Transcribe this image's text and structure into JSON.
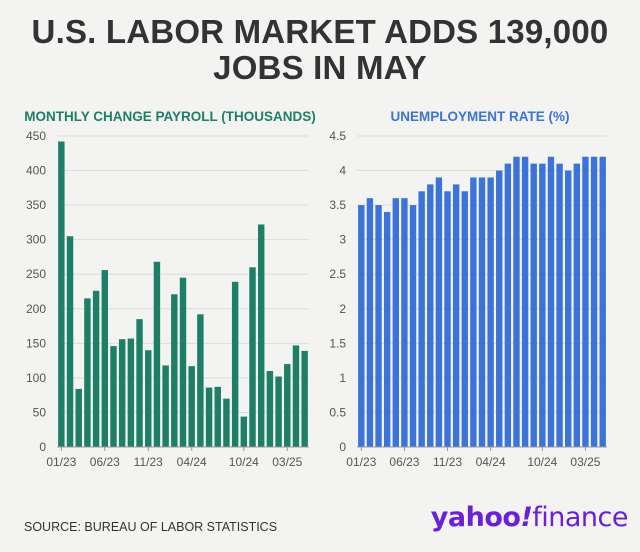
{
  "headline": {
    "line1": "U.S. LABOR MARKET ADDS 139,000",
    "line2": "JOBS IN MAY"
  },
  "source": "SOURCE: BUREAU OF LABOR STATISTICS",
  "logo": {
    "part1": "yahoo",
    "slash": "!",
    "part2": "finance"
  },
  "colors": {
    "payroll": "#1f7f66",
    "unemployment": "#3b73d9",
    "payroll_title": "#1f7f66",
    "unemployment_title": "#3b73d9"
  },
  "chart_data": [
    {
      "type": "bar",
      "title": "MONTHLY CHANGE PAYROLL (THOUSANDS)",
      "xlabel": "",
      "ylabel": "",
      "ylim": [
        0,
        450
      ],
      "yticks": [
        0,
        50,
        100,
        150,
        200,
        250,
        300,
        350,
        400,
        450
      ],
      "xtick_labels": [
        "01/23",
        "06/23",
        "11/23",
        "04/24",
        "10/24",
        "03/25"
      ],
      "xtick_indices": [
        0,
        5,
        10,
        15,
        21,
        26
      ],
      "categories": [
        "01/23",
        "02/23",
        "03/23",
        "04/23",
        "05/23",
        "06/23",
        "07/23",
        "08/23",
        "09/23",
        "10/23",
        "11/23",
        "12/23",
        "01/24",
        "02/24",
        "03/24",
        "04/24",
        "05/24",
        "06/24",
        "07/24",
        "08/24",
        "09/24",
        "10/24",
        "11/24",
        "12/24",
        "01/25",
        "02/25",
        "03/25",
        "04/25",
        "05/25"
      ],
      "values": [
        442,
        305,
        84,
        215,
        226,
        256,
        146,
        156,
        157,
        185,
        140,
        268,
        118,
        221,
        245,
        117,
        192,
        86,
        87,
        70,
        239,
        44,
        260,
        322,
        110,
        102,
        120,
        147,
        139
      ],
      "grid": true
    },
    {
      "type": "bar",
      "title": "UNEMPLOYMENT RATE (%)",
      "xlabel": "",
      "ylabel": "",
      "ylim": [
        0,
        4.5
      ],
      "yticks": [
        0,
        0.5,
        1,
        1.5,
        2,
        2.5,
        3,
        3.5,
        4,
        4.5
      ],
      "xtick_labels": [
        "01/23",
        "06/23",
        "11/23",
        "04/24",
        "10/24",
        "03/25"
      ],
      "xtick_indices": [
        0,
        5,
        10,
        15,
        21,
        26
      ],
      "categories": [
        "01/23",
        "02/23",
        "03/23",
        "04/23",
        "05/23",
        "06/23",
        "07/23",
        "08/23",
        "09/23",
        "10/23",
        "11/23",
        "12/23",
        "01/24",
        "02/24",
        "03/24",
        "04/24",
        "05/24",
        "06/24",
        "07/24",
        "08/24",
        "09/24",
        "10/24",
        "11/24",
        "12/24",
        "01/25",
        "02/25",
        "03/25",
        "04/25",
        "05/25"
      ],
      "values": [
        3.5,
        3.6,
        3.5,
        3.4,
        3.6,
        3.6,
        3.5,
        3.7,
        3.8,
        3.9,
        3.7,
        3.8,
        3.7,
        3.9,
        3.9,
        3.9,
        4.0,
        4.1,
        4.2,
        4.2,
        4.1,
        4.1,
        4.2,
        4.1,
        4.0,
        4.1,
        4.2,
        4.2,
        4.2
      ],
      "grid": true
    }
  ]
}
